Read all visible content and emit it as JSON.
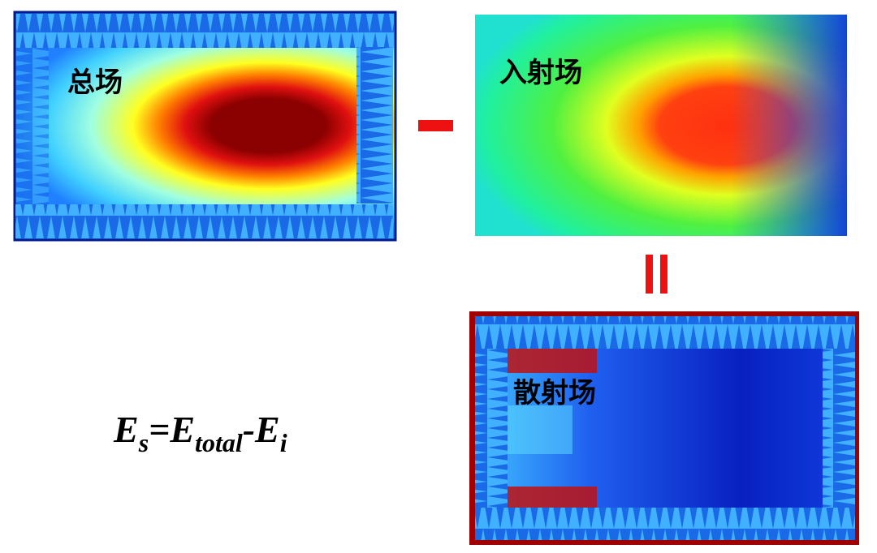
{
  "panels": [
    {
      "label": "总场"
    },
    {
      "label": "入射场"
    },
    {
      "label": "散射场"
    }
  ],
  "formula": {
    "lhs": {
      "base": "E",
      "sub": "s"
    },
    "eq": "=",
    "term1": {
      "base": "E",
      "sub": "total"
    },
    "op": "-",
    "term2": {
      "base": "E",
      "sub": "i"
    }
  }
}
